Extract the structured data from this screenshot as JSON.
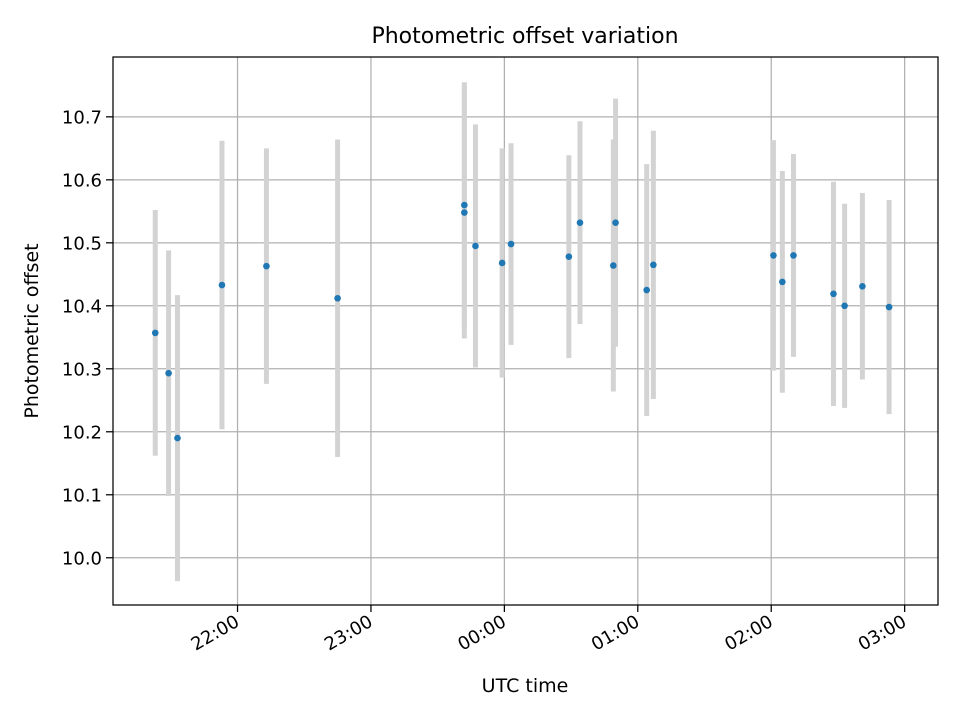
{
  "chart_data": {
    "type": "scatter",
    "title": "Photometric offset variation",
    "xlabel": "UTC time",
    "ylabel": "Photometric offset",
    "grid": true,
    "xlim": [
      "21:04",
      "03:15"
    ],
    "ylim": [
      9.925,
      10.795
    ],
    "x_ticks": [
      "22:00",
      "23:00",
      "00:00",
      "01:00",
      "02:00",
      "03:00"
    ],
    "y_ticks": [
      "10.0",
      "10.1",
      "10.2",
      "10.3",
      "10.4",
      "10.5",
      "10.6",
      "10.7"
    ],
    "point_color": "#1f77b4",
    "errorbar_color": "#d3d3d3",
    "series": [
      {
        "x": [
          "21:23",
          "21:29",
          "21:33",
          "21:53",
          "22:13",
          "22:45",
          "23:42",
          "23:42",
          "23:47",
          "23:59",
          "00:03",
          "00:29",
          "00:34",
          "00:49",
          "00:50",
          "01:04",
          "01:07",
          "02:01",
          "02:05",
          "02:10",
          "02:28",
          "02:33",
          "02:41",
          "02:53"
        ],
        "y": [
          10.357,
          10.293,
          10.19,
          10.433,
          10.463,
          10.412,
          10.548,
          10.56,
          10.495,
          10.468,
          10.498,
          10.478,
          10.532,
          10.464,
          10.532,
          10.425,
          10.465,
          10.48,
          10.438,
          10.48,
          10.419,
          10.4,
          10.431,
          10.398
        ],
        "yerr": [
          0.195,
          0.195,
          0.227,
          0.229,
          0.187,
          0.252,
          0.2,
          0.195,
          0.193,
          0.182,
          0.16,
          0.161,
          0.161,
          0.2,
          0.197,
          0.2,
          0.213,
          0.183,
          0.176,
          0.161,
          0.178,
          0.162,
          0.148,
          0.17
        ]
      }
    ]
  }
}
